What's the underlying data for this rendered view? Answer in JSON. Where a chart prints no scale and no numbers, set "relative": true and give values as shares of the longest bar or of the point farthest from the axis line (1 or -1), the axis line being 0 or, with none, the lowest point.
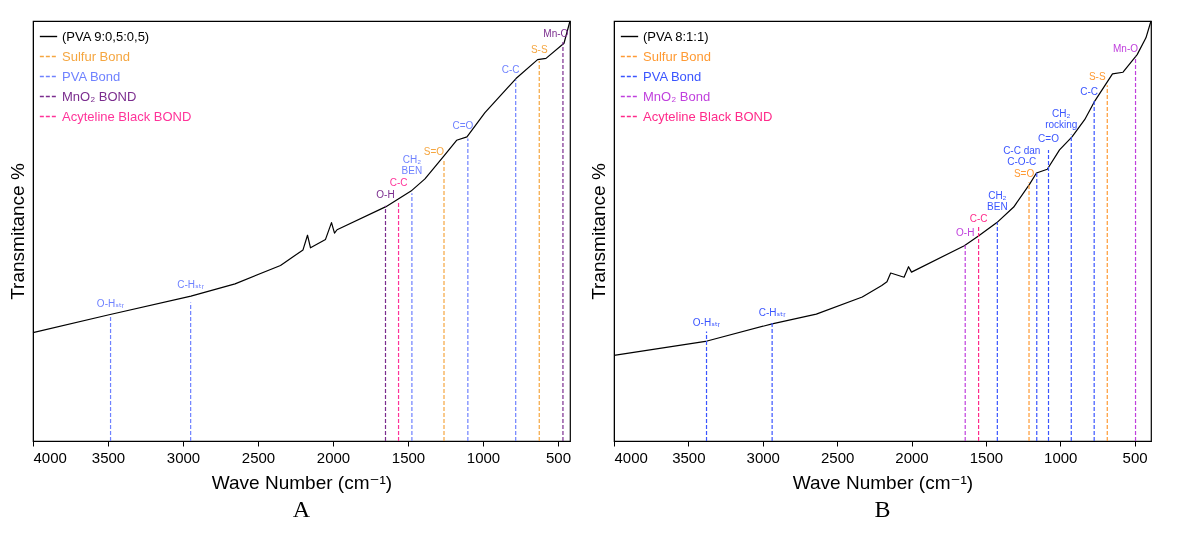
{
  "chart_data": [
    {
      "type": "line",
      "title": "A",
      "xlabel": "Wave Number (cm⁻¹)",
      "ylabel": "Transmitance %",
      "relative": true,
      "xlim": [
        4000,
        420
      ],
      "xticks": [
        4000,
        3500,
        3000,
        2500,
        2000,
        1500,
        1000,
        500
      ],
      "legend": "top left",
      "series": [
        {
          "name": "(PVA 9:0,5:0,5)",
          "color": "#000000",
          "line_style": "solid",
          "x": [
            4000,
            3500,
            2947,
            2653,
            2350,
            2200,
            2170,
            2150,
            2050,
            2010,
            1990,
            1973,
            1647,
            1480,
            1387,
            1260,
            1176,
            1107,
            987,
            780,
            636,
            580,
            460,
            420
          ],
          "values": [
            0.258,
            0.3,
            0.345,
            0.374,
            0.418,
            0.455,
            0.49,
            0.46,
            0.48,
            0.52,
            0.495,
            0.503,
            0.558,
            0.595,
            0.624,
            0.679,
            0.716,
            0.724,
            0.782,
            0.863,
            0.908,
            0.911,
            0.947,
            1
          ]
        },
        {
          "name": "Sulfur Bond",
          "color": "#f5a640",
          "line_style": "dashed",
          "x": [
            1260,
            1260,
            null,
            625,
            625
          ],
          "values": [
            0,
            0.67,
            null,
            0,
            0.905
          ]
        },
        {
          "name": "PVA Bond",
          "color": "#6f82ff",
          "line_style": "dashed",
          "x": [
            3483,
            3483,
            null,
            2949,
            2949,
            null,
            1474,
            1474,
            null,
            1101,
            1101,
            null,
            782,
            782
          ],
          "values": [
            0,
            0.3,
            null,
            0,
            0.33,
            null,
            0,
            0.59,
            null,
            0,
            0.72,
            null,
            0,
            0.86
          ]
        },
        {
          "name": "MnO₂ BOND",
          "color": "#7b2d8e",
          "line_style": "dashed",
          "x": [
            1650,
            1650,
            null,
            467,
            467
          ],
          "values": [
            0,
            0.56,
            null,
            0,
            0.95
          ]
        },
        {
          "name": "Acyteline Black BOND",
          "color": "#ff3399",
          "line_style": "dashed",
          "x": [
            1563,
            1563
          ],
          "values": [
            0,
            0.57
          ]
        }
      ],
      "annotations": [
        {
          "text": "O-Hₛₜᵣ",
          "x": 3483,
          "y": 0.3
        },
        {
          "text": "C-Hₛₜᵣ",
          "x": 2949,
          "y": 0.33
        },
        {
          "text": "O-H",
          "x": 1650,
          "y": 0.56
        },
        {
          "text": "C-C",
          "x": 1563,
          "y": 0.57
        },
        {
          "text": "CH₂\nBEN",
          "x": 1474,
          "y": 0.59
        },
        {
          "text": "S=O",
          "x": 1260,
          "y": 0.67
        },
        {
          "text": "C=O",
          "x": 1101,
          "y": 0.72
        },
        {
          "text": "C-C",
          "x": 782,
          "y": 0.86
        },
        {
          "text": "S-S",
          "x": 625,
          "y": 0.905
        },
        {
          "text": "Mn-O",
          "x": 467,
          "y": 0.95
        }
      ]
    },
    {
      "type": "line",
      "title": "B",
      "xlabel": "Wave Number (cm⁻¹)",
      "ylabel": "Transmitance %",
      "relative": true,
      "xlim": [
        4000,
        390
      ],
      "xticks": [
        4000,
        3500,
        3000,
        2500,
        2000,
        1500,
        1000,
        500
      ],
      "legend": "top left",
      "series": [
        {
          "name": "(PVA 8:1:1)",
          "color": "#000000",
          "line_style": "solid",
          "x": [
            4000,
            3374,
            2937,
            2640,
            2331,
            2200,
            2165,
            2140,
            2050,
            2020,
            2000,
            1645,
            1550,
            1426,
            1313,
            1207,
            1160,
            1087,
            1005,
            921,
            836,
            767,
            649,
            578,
            483,
            424,
            390
          ],
          "values": [
            0.204,
            0.238,
            0.279,
            0.302,
            0.343,
            0.37,
            0.379,
            0.4,
            0.39,
            0.415,
            0.402,
            0.465,
            0.488,
            0.52,
            0.557,
            0.611,
            0.638,
            0.647,
            0.693,
            0.724,
            0.765,
            0.81,
            0.874,
            0.878,
            0.92,
            0.96,
            1
          ]
        },
        {
          "name": "Sulfur Bond",
          "color": "#ff9a33",
          "line_style": "dashed",
          "x": [
            1210,
            1210,
            null,
            684,
            684
          ],
          "values": [
            0,
            0.616,
            null,
            0,
            0.847
          ]
        },
        {
          "name": "PVA Bond",
          "color": "#3a55ff",
          "line_style": "dashed",
          "x": [
            3378,
            3378,
            null,
            2937,
            2937,
            null,
            1423,
            1423,
            null,
            1158,
            1158,
            null,
            1079,
            1079,
            null,
            926,
            926,
            null,
            772,
            772
          ],
          "values": [
            0,
            0.261,
            null,
            0,
            0.283,
            null,
            0,
            0.52,
            null,
            0,
            0.638,
            null,
            0,
            0.693,
            null,
            0,
            0.73,
            null,
            0,
            0.81
          ]
        },
        {
          "name": "MnO₂ Bond",
          "color": "#c040dd",
          "line_style": "dashed",
          "x": [
            1639,
            1639,
            null,
            494,
            494
          ],
          "values": [
            0,
            0.466,
            null,
            0,
            0.915
          ]
        },
        {
          "name": "Acyteline Black BOND",
          "color": "#ff2a8a",
          "line_style": "dashed",
          "x": [
            1549,
            1549
          ],
          "values": [
            0,
            0.51
          ]
        }
      ],
      "annotations": [
        {
          "text": "O-Hₛₜᵣ",
          "x": 3378,
          "y": 0.261
        },
        {
          "text": "C-Hₛₜᵣ",
          "x": 2937,
          "y": 0.283
        },
        {
          "text": "O-H",
          "x": 1639,
          "y": 0.466
        },
        {
          "text": "C-C",
          "x": 1549,
          "y": 0.51
        },
        {
          "text": "CH₂\nBEN",
          "x": 1423,
          "y": 0.52
        },
        {
          "text": "S=O",
          "x": 1210,
          "y": 0.616
        },
        {
          "text": "C-C dan\nC-O-C",
          "x": 1158,
          "y": 0.638
        },
        {
          "text": "C=O",
          "x": 1079,
          "y": 0.693
        },
        {
          "text": "CH₂\nrocking",
          "x": 926,
          "y": 0.73
        },
        {
          "text": "C-C",
          "x": 772,
          "y": 0.81
        },
        {
          "text": "S-S",
          "x": 684,
          "y": 0.847
        },
        {
          "text": "Mn-O",
          "x": 494,
          "y": 0.915
        }
      ]
    }
  ]
}
